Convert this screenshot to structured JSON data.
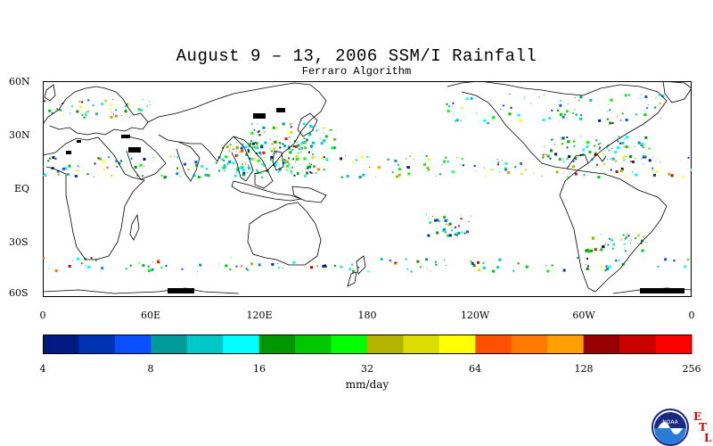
{
  "title": "August 9 – 13, 2006 SSM/I Rainfall",
  "subtitle": "Ferraro Algorithm",
  "map": {
    "lat_labels": [
      "60N",
      "30N",
      "EQ",
      "30S",
      "60S"
    ],
    "lat_values": [
      60,
      30,
      0,
      -30,
      -60
    ],
    "lon_labels": [
      "0",
      "60E",
      "120E",
      "180",
      "120W",
      "60W",
      "0"
    ],
    "lon_values": [
      0,
      60,
      120,
      180,
      240,
      300,
      360
    ],
    "lat_range": [
      -60,
      60
    ],
    "lon_range": [
      0,
      360
    ]
  },
  "colorbar": {
    "colors": [
      "#001a80",
      "#0033b3",
      "#0a4fff",
      "#009a9a",
      "#00c8c8",
      "#00ffff",
      "#009600",
      "#00c800",
      "#00ff00",
      "#b4b400",
      "#dcdc00",
      "#ffff00",
      "#ff5000",
      "#ff7800",
      "#ffa000",
      "#960000",
      "#c80000",
      "#ff0000"
    ],
    "tick_labels": [
      "4",
      "8",
      "16",
      "32",
      "64",
      "128",
      "256"
    ],
    "tick_values": [
      4,
      8,
      16,
      32,
      64,
      128,
      256
    ],
    "units": "mm/day"
  },
  "logo": {
    "text": "NOAA",
    "letters": [
      "E",
      "T",
      "L"
    ]
  }
}
